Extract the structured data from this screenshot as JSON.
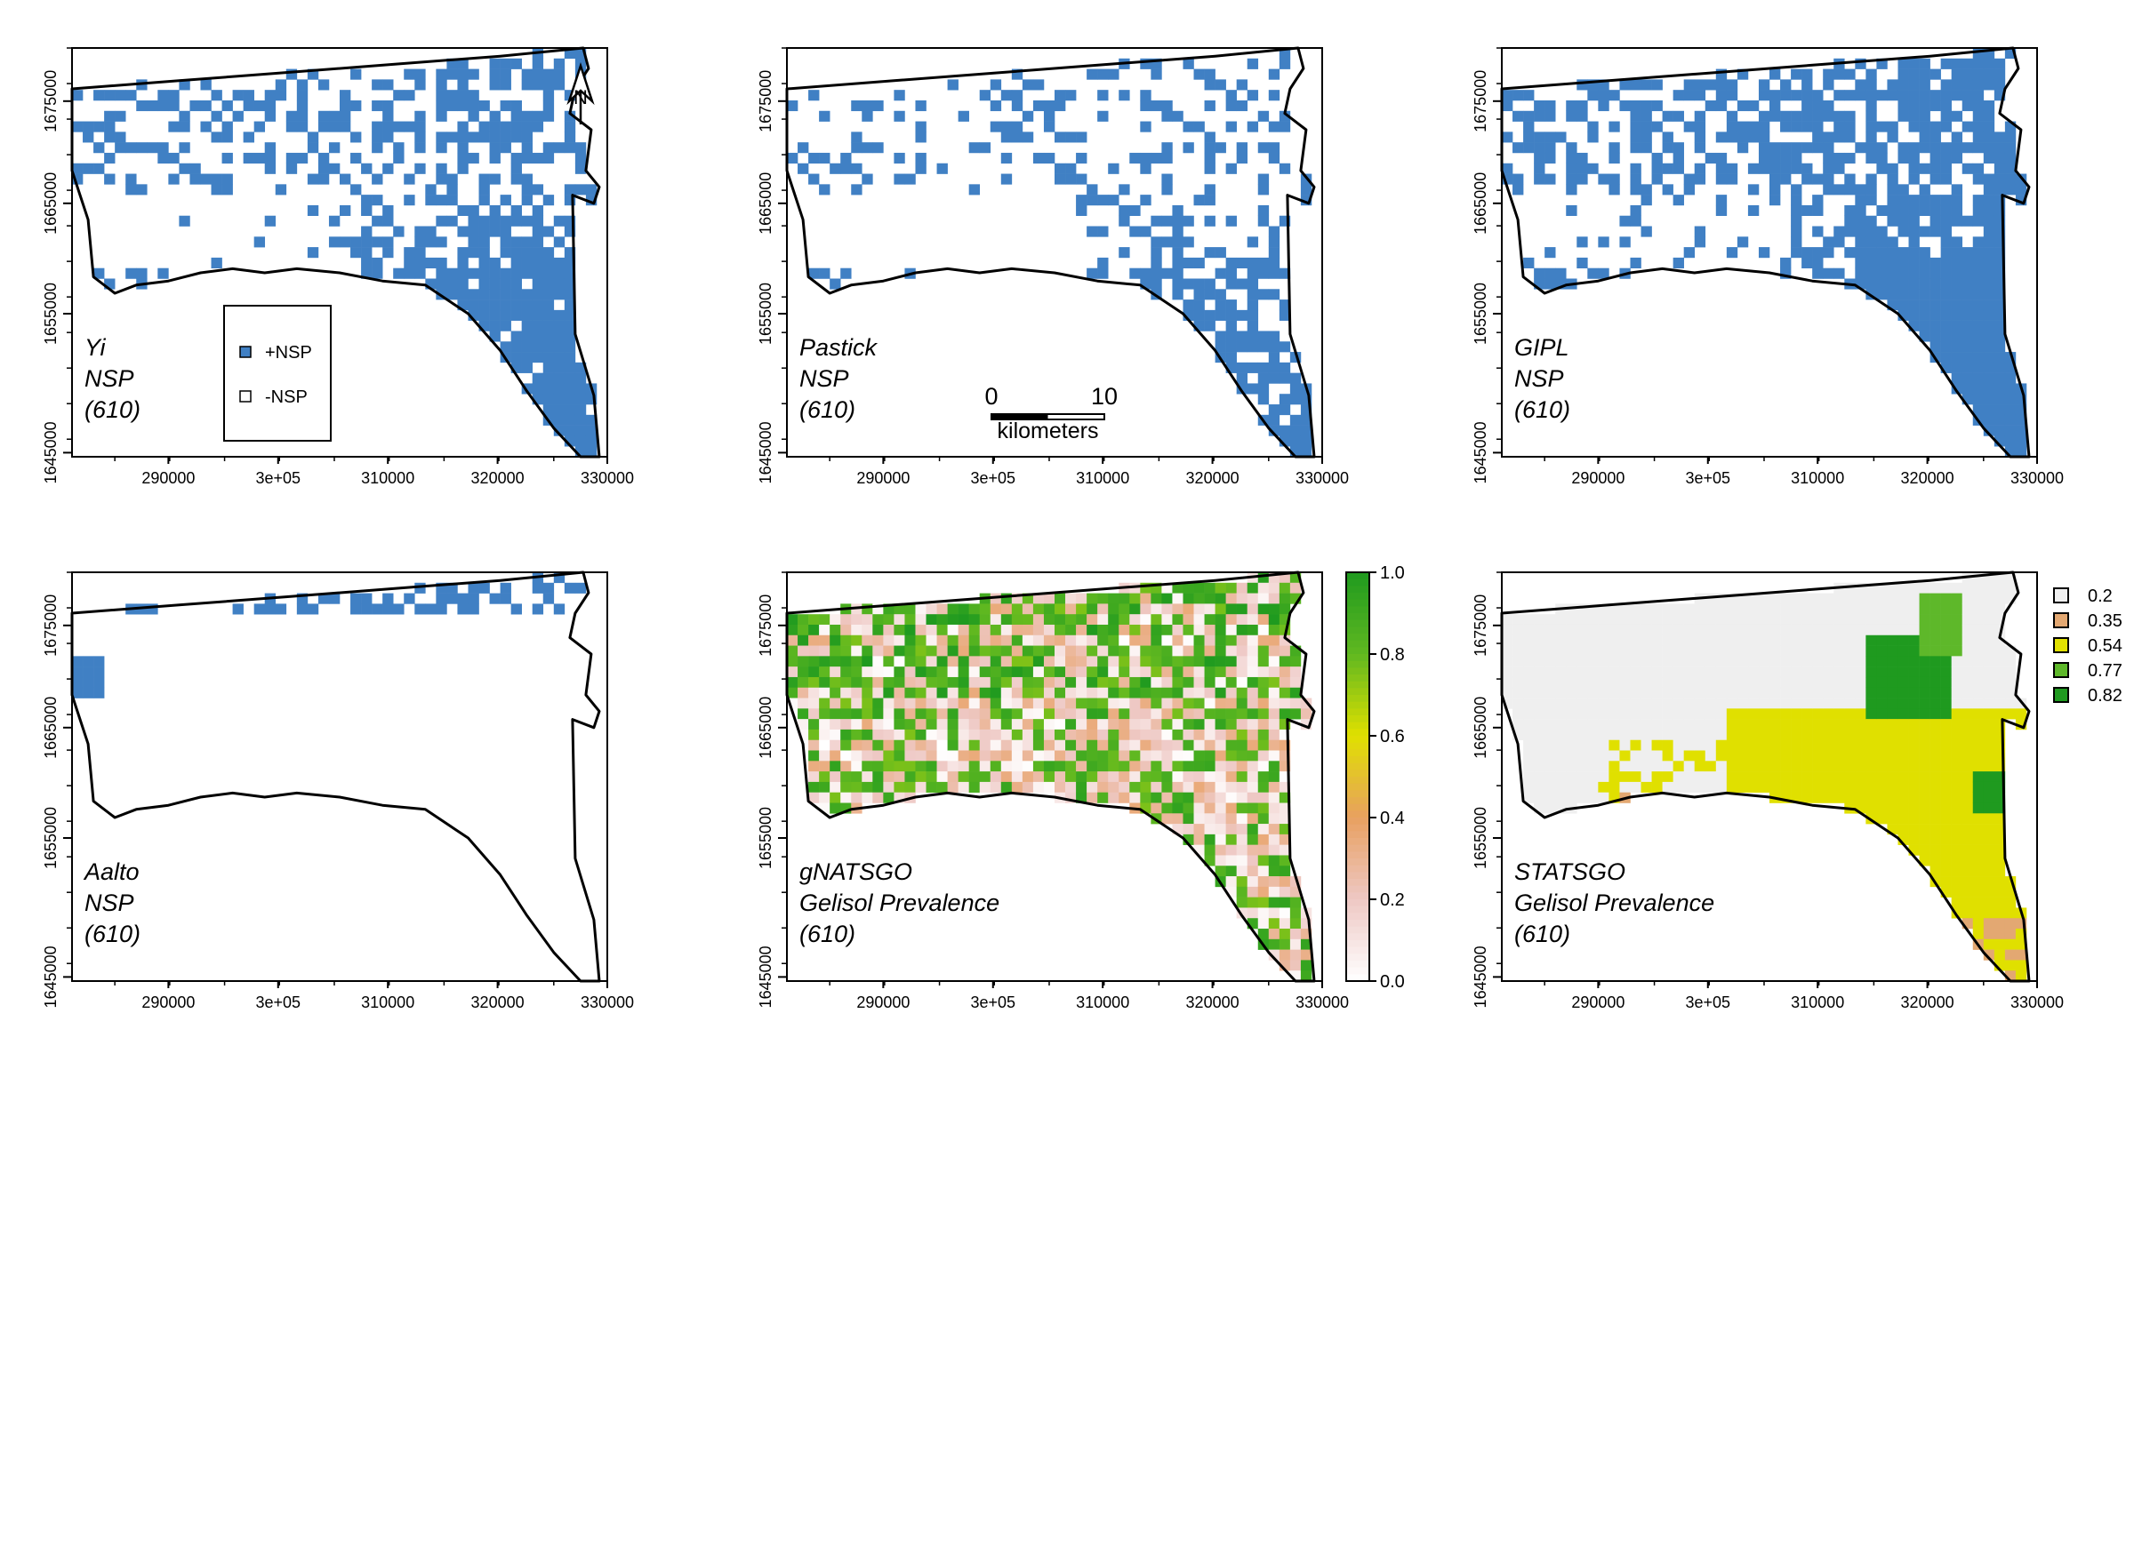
{
  "panels": [
    {
      "id": "yi",
      "title": [
        "Yi",
        "NSP",
        "(610)"
      ],
      "scheme": "binary",
      "density": 0.55,
      "east": 0.55,
      "south": 0.6
    },
    {
      "id": "pastick",
      "title": [
        "Pastick",
        "NSP",
        "(610)"
      ],
      "scheme": "binary",
      "density": 0.32,
      "east": 0.6,
      "south": 0.55
    },
    {
      "id": "gipl",
      "title": [
        "GIPL",
        "NSP",
        "(610)"
      ],
      "scheme": "binary",
      "density": 0.78,
      "east": 0.5,
      "south": 0.5
    },
    {
      "id": "aalto",
      "title": [
        "Aalto",
        "NSP",
        "(610)"
      ],
      "scheme": "binary",
      "density": 0.04,
      "east": 0.0,
      "south": 0.0
    },
    {
      "id": "gnatsgo",
      "title": [
        "gNATSGO",
        "Gelisol Prevalence",
        "(610)"
      ],
      "scheme": "continuous",
      "density": 0.5,
      "east": 0.3,
      "south": 0.2
    },
    {
      "id": "statsgo",
      "title": [
        "STATSGO",
        "Gelisol Prevalence",
        "(610)"
      ],
      "scheme": "classes",
      "density": 0.5,
      "east": 0.0,
      "south": 0.0
    }
  ],
  "axes": {
    "x_ticks": [
      "290000",
      "3e+05",
      "310000",
      "320000",
      "330000"
    ],
    "y_ticks": [
      "1645000",
      "1655000",
      "1665000",
      "1675000"
    ]
  },
  "binary_legend": {
    "items": [
      {
        "label": "+NSP",
        "color": "#4080c4"
      },
      {
        "label": "-NSP",
        "color": "#ffffff"
      }
    ]
  },
  "scale_bar": {
    "start": "0",
    "end": "10",
    "unit": "kilometers"
  },
  "north_arrow": {
    "label": "N"
  },
  "colorbar": {
    "ticks": [
      "1.0",
      "0.8",
      "0.6",
      "0.4",
      "0.2",
      "0.0"
    ]
  },
  "class_legend": {
    "items": [
      {
        "label": "0.2",
        "color": "#efefef"
      },
      {
        "label": "0.35",
        "color": "#e3a872"
      },
      {
        "label": "0.54",
        "color": "#e0e000"
      },
      {
        "label": "0.77",
        "color": "#5eb82a"
      },
      {
        "label": "0.82",
        "color": "#1f9a1f"
      }
    ]
  },
  "colors": {
    "nsp": "#4080c4",
    "boundary": "#000000"
  }
}
